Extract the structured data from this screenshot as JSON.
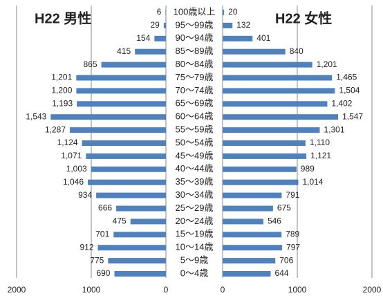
{
  "chart_data": {
    "type": "pyramid",
    "categories": [
      "100歳以上",
      "95～99歳",
      "90～94歳",
      "85～89歳",
      "80～84歳",
      "75～79歳",
      "70～74歳",
      "65～69歳",
      "60～64歳",
      "55～59歳",
      "50～54歳",
      "45～49歳",
      "40～44歳",
      "35～39歳",
      "30～34歳",
      "25～29歳",
      "20～24歳",
      "15～19歳",
      "10～14歳",
      "5～9歳",
      "0～4歳"
    ],
    "series": [
      {
        "name": "H22 男性",
        "color": "#4f81bd",
        "side": "left",
        "values": [
          6,
          29,
          154,
          415,
          865,
          1201,
          1200,
          1193,
          1543,
          1287,
          1124,
          1071,
          1003,
          1046,
          934,
          666,
          475,
          701,
          912,
          775,
          690
        ],
        "value_labels": [
          "6",
          "29",
          "154",
          "415",
          "865",
          "1,201",
          "1,200",
          "1,193",
          "1,543",
          "1,287",
          "1,124",
          "1,071",
          "1,003",
          "1,046",
          "934",
          "666",
          "475",
          "701",
          "912",
          "775",
          "690"
        ]
      },
      {
        "name": "H22 女性",
        "color": "#4f81bd",
        "side": "right",
        "values": [
          20,
          132,
          401,
          840,
          1201,
          1465,
          1504,
          1402,
          1547,
          1301,
          1110,
          1121,
          989,
          1014,
          791,
          675,
          546,
          789,
          797,
          706,
          644
        ],
        "value_labels": [
          "20",
          "132",
          "401",
          "840",
          "1,201",
          "1,465",
          "1,504",
          "1,402",
          "1,547",
          "1,301",
          "1,110",
          "1,121",
          "989",
          "1,014",
          "791",
          "675",
          "546",
          "789",
          "797",
          "706",
          "644"
        ]
      }
    ],
    "xlim": [
      0,
      2000
    ],
    "xticks": [
      0,
      1000,
      2000
    ]
  }
}
